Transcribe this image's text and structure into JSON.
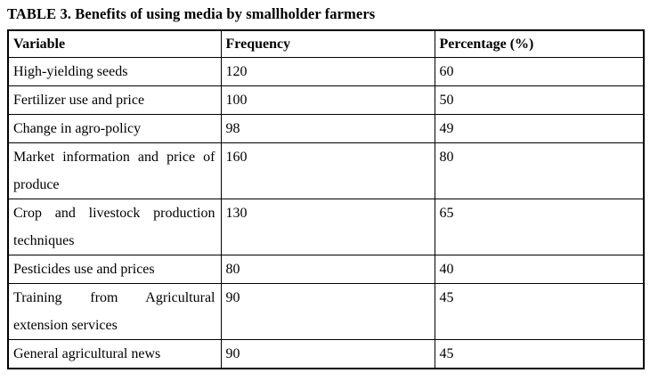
{
  "title": "TABLE 3. Benefits of using media by smallholder farmers",
  "table": {
    "columns": [
      "Variable",
      "Frequency",
      "Percentage (%)"
    ],
    "rows": [
      {
        "variable": "High-yielding seeds",
        "frequency": "120",
        "percentage": "60"
      },
      {
        "variable": "Fertilizer use and price",
        "frequency": "100",
        "percentage": "50"
      },
      {
        "variable": "Change in agro-policy",
        "frequency": "98",
        "percentage": "49"
      },
      {
        "variable": "Market information and price of produce",
        "frequency": "160",
        "percentage": "80"
      },
      {
        "variable": "Crop and livestock production techniques",
        "frequency": "130",
        "percentage": "65"
      },
      {
        "variable": "Pesticides use and prices",
        "frequency": "80",
        "percentage": "40"
      },
      {
        "variable": "Training from Agricultural extension services",
        "frequency": "90",
        "percentage": "45"
      },
      {
        "variable": "General agricultural news",
        "frequency": "90",
        "percentage": "45"
      }
    ]
  },
  "colors": {
    "text": "#000000",
    "border": "#000000",
    "background": "#ffffff"
  }
}
